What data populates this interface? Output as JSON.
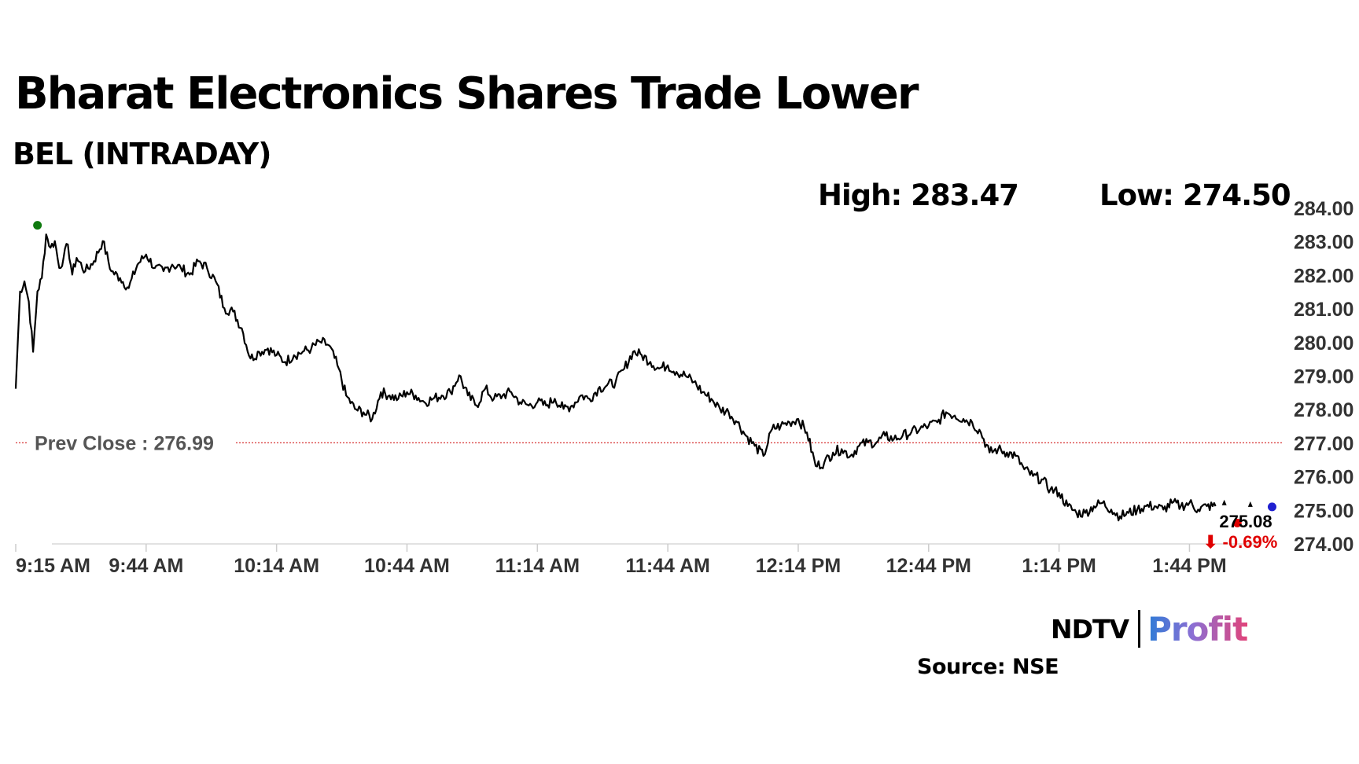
{
  "header": {
    "title": "Bharat Electronics Shares Trade Lower",
    "subtitle": "BEL (INTRADAY)",
    "high_label": "High: 283.47",
    "low_label": "Low: 274.50"
  },
  "chart_data": {
    "type": "line",
    "title": "Bharat Electronics Shares Trade Lower",
    "subtitle": "BEL (INTRADAY)",
    "xlabel": "",
    "ylabel": "",
    "x_ticks": [
      "9:15 AM",
      "9:44 AM",
      "10:14 AM",
      "10:44 AM",
      "11:14 AM",
      "11:44 AM",
      "12:14 PM",
      "12:44 PM",
      "1:14 PM",
      "1:44 PM"
    ],
    "y_ticks": [
      "284.00",
      "283.00",
      "282.00",
      "281.00",
      "280.00",
      "279.00",
      "278.00",
      "277.00",
      "276.00",
      "275.00",
      "274.00"
    ],
    "ylim": [
      274,
      284
    ],
    "x_range_minutes_from_open": [
      0,
      290
    ],
    "grid": false,
    "legend": "none",
    "prev_close": 276.99,
    "prev_close_label": "Prev Close : 276.99",
    "high": 283.47,
    "low": 274.5,
    "last_price": 275.08,
    "last_price_label": "275.08",
    "change_label": "⬇ -0.69%",
    "series": [
      {
        "x": [
          0,
          1,
          2,
          3,
          4,
          5,
          6,
          7,
          8,
          9,
          10,
          11,
          12,
          13,
          14,
          16,
          18,
          20,
          22,
          24,
          26,
          28,
          30,
          32,
          34,
          36,
          38,
          40,
          42,
          44,
          46,
          48,
          50,
          52,
          54,
          56,
          58,
          60,
          62,
          64,
          66,
          68,
          70,
          72,
          74,
          76,
          78,
          80,
          82,
          84,
          86,
          88,
          90,
          92,
          94,
          96,
          98,
          100,
          102,
          104,
          106,
          108,
          110,
          112,
          114,
          116,
          118,
          120,
          122,
          124,
          126,
          128,
          130,
          132,
          134,
          136,
          138,
          140,
          142,
          144,
          146,
          148,
          150,
          152,
          154,
          156,
          158,
          160,
          162,
          164,
          166,
          168,
          170,
          172,
          174,
          176,
          178,
          180,
          182,
          184,
          186,
          188,
          190,
          192,
          194,
          196,
          198,
          200,
          202,
          204,
          206,
          208,
          210,
          212,
          214,
          216,
          218,
          220,
          222,
          224,
          226,
          228,
          230,
          232,
          234,
          236,
          238,
          240,
          242,
          244,
          246,
          248,
          250,
          252,
          254,
          256,
          258,
          260,
          262,
          264,
          266,
          268,
          270,
          272,
          274,
          276
        ],
        "values": [
          278.6,
          281.5,
          281.8,
          281.2,
          279.7,
          281.5,
          281.9,
          283.2,
          282.8,
          283.0,
          282.2,
          282.5,
          282.9,
          282.0,
          282.5,
          282.1,
          282.4,
          283.0,
          282.1,
          281.9,
          281.6,
          282.3,
          282.6,
          282.2,
          282.1,
          282.3,
          282.2,
          282.0,
          282.4,
          282.2,
          281.8,
          281.0,
          280.9,
          280.4,
          279.5,
          279.7,
          279.8,
          279.6,
          279.4,
          279.6,
          279.7,
          279.8,
          280.0,
          279.9,
          279.3,
          278.4,
          278.0,
          277.9,
          277.7,
          278.5,
          278.4,
          278.3,
          278.5,
          278.4,
          278.2,
          278.3,
          278.4,
          278.5,
          279.0,
          278.4,
          278.1,
          278.6,
          278.3,
          278.4,
          278.5,
          278.2,
          278.1,
          278.2,
          278.1,
          278.3,
          278.0,
          278.1,
          278.4,
          278.3,
          278.6,
          278.7,
          278.8,
          279.2,
          279.7,
          279.6,
          279.4,
          279.2,
          279.3,
          279.1,
          279.0,
          278.8,
          278.5,
          278.3,
          278.0,
          277.9,
          277.6,
          277.2,
          276.9,
          276.6,
          277.4,
          277.5,
          277.6,
          277.7,
          277.3,
          276.3,
          276.4,
          276.7,
          276.8,
          276.6,
          276.9,
          277.0,
          277.0,
          277.2,
          277.1,
          277.2,
          277.3,
          277.4,
          277.5,
          277.6,
          277.9,
          277.8,
          277.7,
          277.6,
          277.3,
          276.7,
          276.8,
          276.7,
          276.6,
          276.2,
          276.0,
          275.9,
          275.6,
          275.5,
          275.1,
          274.9,
          274.9,
          275.1,
          275.2,
          275.0,
          274.8,
          274.9,
          275.0,
          275.1,
          275.1,
          275.0,
          275.2,
          275.1,
          275.2,
          275.0,
          275.1,
          275.1
        ]
      }
    ],
    "markers": [
      {
        "name": "high",
        "x": 5,
        "value": 283.47,
        "color": "#0f7a0f"
      },
      {
        "name": "last",
        "x": 281,
        "value": 274.6,
        "color": "#e00000"
      },
      {
        "name": "current",
        "x": 289,
        "value": 275.08,
        "color": "#2020d0"
      }
    ],
    "colors": {
      "line": "#000000",
      "prev_close": "#d21d1d",
      "change": "#e00000",
      "axis_text": "#333333"
    }
  },
  "logo": {
    "ndtv": "NDTV",
    "profit": "Profit"
  },
  "source": "Source: NSE"
}
